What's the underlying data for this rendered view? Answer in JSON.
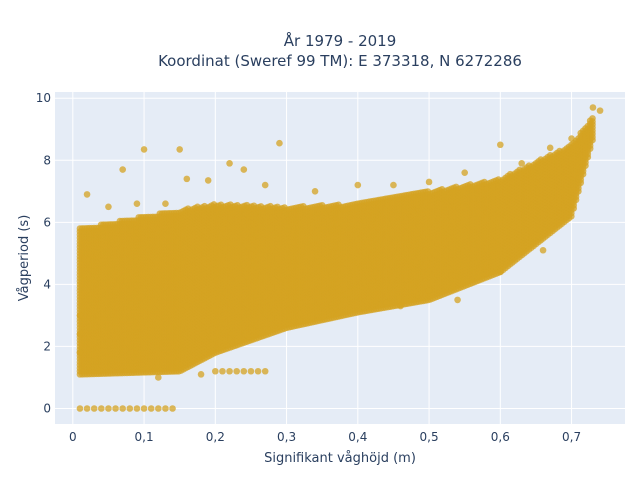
{
  "chart_data": {
    "type": "scatter",
    "title_line1": "År 1979 - 2019",
    "title_line2": "Koordinat (Sweref 99 TM): E 373318, N 6272286",
    "xlabel": "Signifikant våghöjd (m)",
    "ylabel": "Vågperiod (s)",
    "xlim": [
      -0.025,
      0.775
    ],
    "ylim": [
      -0.5,
      10.2
    ],
    "xticks": [
      0,
      0.1,
      0.2,
      0.3,
      0.4,
      0.5,
      0.6,
      0.7
    ],
    "xtick_labels": [
      "0",
      "0,1",
      "0,2",
      "0,3",
      "0,4",
      "0,5",
      "0,6",
      "0,7"
    ],
    "yticks": [
      0,
      2,
      4,
      6,
      8,
      10
    ],
    "ytick_labels": [
      "0",
      "2",
      "4",
      "6",
      "8",
      "10"
    ],
    "grid": true,
    "plot_background": "#e5ecf6",
    "marker_color": "#D4A321",
    "series": [
      {
        "band_lower": [
          [
            0.01,
            1.1
          ],
          [
            0.15,
            1.2
          ],
          [
            0.2,
            1.8
          ],
          [
            0.3,
            2.6
          ],
          [
            0.4,
            3.1
          ],
          [
            0.5,
            3.5
          ],
          [
            0.6,
            4.4
          ],
          [
            0.7,
            6.2
          ],
          [
            0.73,
            8.7
          ]
        ],
        "band_upper": [
          [
            0.01,
            5.8
          ],
          [
            0.1,
            6.2
          ],
          [
            0.2,
            6.6
          ],
          [
            0.3,
            6.5
          ],
          [
            0.4,
            6.6
          ],
          [
            0.5,
            7.0
          ],
          [
            0.6,
            7.4
          ],
          [
            0.7,
            8.5
          ],
          [
            0.73,
            9.4
          ]
        ],
        "zero_period_points": [
          [
            0.01,
            0
          ],
          [
            0.02,
            0
          ],
          [
            0.03,
            0
          ],
          [
            0.04,
            0
          ],
          [
            0.05,
            0
          ],
          [
            0.06,
            0
          ],
          [
            0.07,
            0
          ],
          [
            0.08,
            0
          ],
          [
            0.09,
            0
          ],
          [
            0.1,
            0
          ],
          [
            0.11,
            0
          ],
          [
            0.12,
            0
          ],
          [
            0.13,
            0
          ],
          [
            0.14,
            0
          ]
        ],
        "low_row_points": [
          [
            0.2,
            1.2
          ],
          [
            0.21,
            1.2
          ],
          [
            0.22,
            1.2
          ],
          [
            0.23,
            1.2
          ],
          [
            0.24,
            1.2
          ],
          [
            0.25,
            1.2
          ],
          [
            0.26,
            1.2
          ],
          [
            0.27,
            1.2
          ]
        ],
        "outlier_points": [
          [
            0.1,
            8.35
          ],
          [
            0.15,
            8.35
          ],
          [
            0.29,
            8.55
          ],
          [
            0.6,
            8.5
          ],
          [
            0.73,
            9.7
          ],
          [
            0.74,
            9.6
          ],
          [
            0.07,
            7.7
          ],
          [
            0.16,
            7.4
          ],
          [
            0.22,
            7.9
          ],
          [
            0.16,
            3.3
          ],
          [
            0.44,
            3.4
          ],
          [
            0.46,
            3.3
          ],
          [
            0.5,
            3.8
          ],
          [
            0.54,
            3.5
          ],
          [
            0.6,
            4.4
          ],
          [
            0.66,
            5.1
          ],
          [
            0.02,
            6.9
          ],
          [
            0.05,
            6.5
          ],
          [
            0.09,
            6.6
          ],
          [
            0.13,
            6.6
          ],
          [
            0.19,
            7.35
          ],
          [
            0.24,
            7.7
          ],
          [
            0.27,
            7.2
          ],
          [
            0.34,
            7.0
          ],
          [
            0.4,
            7.2
          ],
          [
            0.45,
            7.2
          ],
          [
            0.5,
            7.3
          ],
          [
            0.55,
            7.6
          ],
          [
            0.63,
            7.9
          ],
          [
            0.67,
            8.4
          ],
          [
            0.7,
            8.7
          ],
          [
            0.01,
            3.0
          ],
          [
            0.01,
            2.4
          ],
          [
            0.01,
            1.8
          ],
          [
            0.18,
            1.1
          ],
          [
            0.12,
            1.0
          ]
        ]
      }
    ]
  }
}
